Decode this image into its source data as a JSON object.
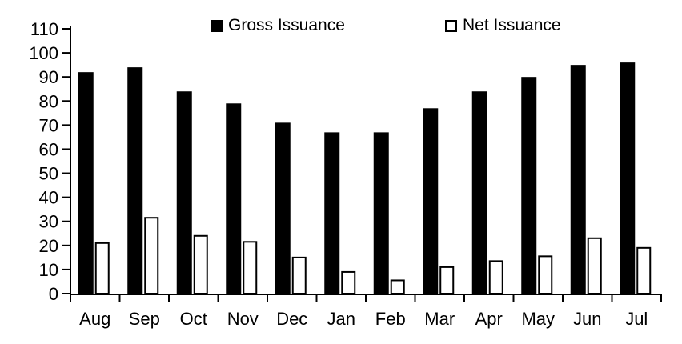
{
  "chart_data": {
    "type": "bar",
    "categories": [
      "Aug",
      "Sep",
      "Oct",
      "Nov",
      "Dec",
      "Jan",
      "Feb",
      "Mar",
      "Apr",
      "May",
      "Jun",
      "Jul"
    ],
    "series": [
      {
        "name": "Gross Issuance",
        "values": [
          92,
          94,
          84,
          79,
          71,
          67,
          67,
          77,
          84,
          90,
          95,
          96
        ],
        "fill": "#000000",
        "stroke": "#000000"
      },
      {
        "name": "Net Issuance",
        "values": [
          21,
          31.5,
          24,
          21.5,
          15,
          9,
          5.5,
          11,
          13.5,
          15.5,
          23,
          19
        ],
        "fill": "#ffffff",
        "stroke": "#000000"
      }
    ],
    "title": "",
    "xlabel": "",
    "ylabel": "",
    "ylim": [
      0,
      110
    ],
    "ytick_step": 10,
    "ytick_labels": [
      "0",
      "10",
      "20",
      "30",
      "40",
      "50",
      "60",
      "70",
      "80",
      "90",
      "100",
      "110"
    ],
    "grid": false,
    "legend_position": "top"
  },
  "legend": {
    "items": [
      {
        "label": "Gross Issuance",
        "swatch": "filled-black-square"
      },
      {
        "label": "Net Issuance",
        "swatch": "outlined-white-square"
      }
    ]
  },
  "colors": {
    "background": "#ffffff",
    "axis": "#000000",
    "text": "#000000",
    "gross_fill": "#000000",
    "net_fill": "#ffffff",
    "net_stroke": "#000000"
  }
}
